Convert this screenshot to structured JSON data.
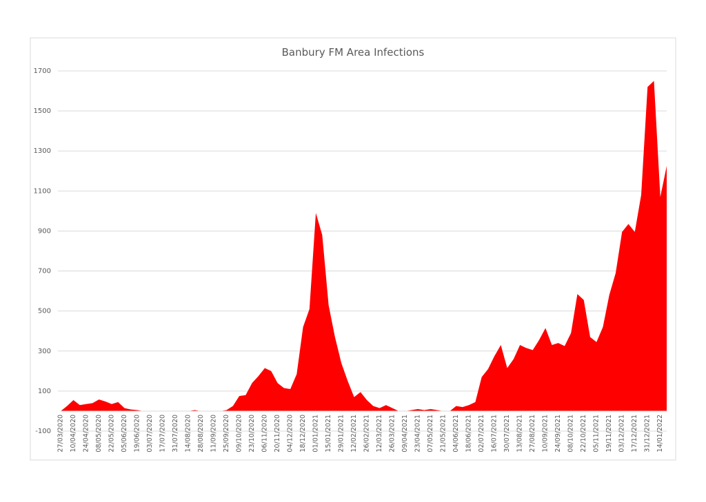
{
  "chart_data": {
    "type": "area",
    "title": "Banbury FM Area Infections",
    "categories": [
      "27/03/2020",
      null,
      "10/04/2020",
      null,
      "24/04/2020",
      null,
      "08/05/2020",
      null,
      "22/05/2020",
      null,
      "05/06/2020",
      null,
      "19/06/2020",
      null,
      "03/07/2020",
      null,
      "17/07/2020",
      null,
      "31/07/2020",
      null,
      "14/08/2020",
      null,
      "28/08/2020",
      null,
      "11/09/2020",
      null,
      "25/09/2020",
      null,
      "09/10/2020",
      null,
      "23/10/2020",
      null,
      "06/11/2020",
      null,
      "20/11/2020",
      null,
      "04/12/2020",
      null,
      "18/12/2020",
      null,
      "01/01/2021",
      null,
      "15/01/2021",
      null,
      "29/01/2021",
      null,
      "12/02/2021",
      null,
      "26/02/2021",
      null,
      "12/03/2021",
      null,
      "26/03/2021",
      null,
      "09/04/2021",
      null,
      "23/04/2021",
      null,
      "07/05/2021",
      null,
      "21/05/2021",
      null,
      "04/06/2021",
      null,
      "18/06/2021",
      null,
      "02/07/2021",
      null,
      "16/07/2021",
      null,
      "30/07/2021",
      null,
      "13/08/2021",
      null,
      "27/08/2021",
      null,
      "10/09/2021",
      null,
      "24/09/2021",
      null,
      "08/10/2021",
      null,
      "22/10/2021",
      null,
      "05/11/2021",
      null,
      "19/11/2021",
      null,
      "03/12/2021",
      null,
      "17/12/2021",
      null,
      "31/12/2021",
      null,
      "14/01/2022",
      null
    ],
    "values": [
      0,
      25,
      55,
      30,
      35,
      40,
      58,
      48,
      35,
      45,
      15,
      8,
      5,
      0,
      0,
      0,
      0,
      0,
      0,
      0,
      0,
      5,
      0,
      0,
      0,
      0,
      5,
      25,
      75,
      80,
      140,
      175,
      215,
      200,
      140,
      115,
      110,
      185,
      420,
      510,
      990,
      880,
      530,
      370,
      240,
      150,
      70,
      95,
      55,
      25,
      15,
      30,
      15,
      0,
      0,
      5,
      10,
      5,
      10,
      5,
      0,
      0,
      25,
      20,
      30,
      45,
      170,
      210,
      275,
      330,
      215,
      260,
      330,
      315,
      305,
      355,
      415,
      330,
      340,
      325,
      390,
      585,
      555,
      370,
      345,
      420,
      580,
      690,
      895,
      935,
      895,
      1080,
      1620,
      1650,
      1070,
      1225
    ],
    "color": "#ff0000",
    "ylim": [
      -100,
      1700
    ],
    "yticks": [
      -100,
      100,
      300,
      500,
      700,
      900,
      1100,
      1300,
      1500,
      1700
    ],
    "grid": true
  }
}
